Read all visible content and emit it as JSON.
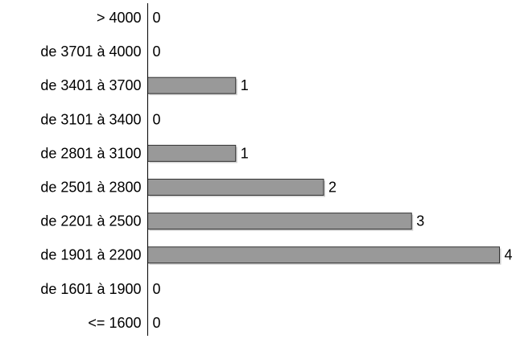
{
  "chart_data": {
    "type": "bar",
    "orientation": "horizontal",
    "categories": [
      "> 4000",
      "de 3701 à 4000",
      "de 3401 à 3700",
      "de 3101 à 3400",
      "de 2801 à 3100",
      "de 2501 à 2800",
      "de 2201 à 2500",
      "de 1901 à 2200",
      "de 1601 à 1900",
      "<= 1600"
    ],
    "values": [
      0,
      0,
      1,
      0,
      1,
      2,
      3,
      4,
      0,
      0
    ],
    "xlim": [
      0,
      4
    ],
    "data_labels": true,
    "grid": false,
    "bar_color": "#999999",
    "bar_edge_color": "#333333",
    "axis_color": "#000000"
  }
}
